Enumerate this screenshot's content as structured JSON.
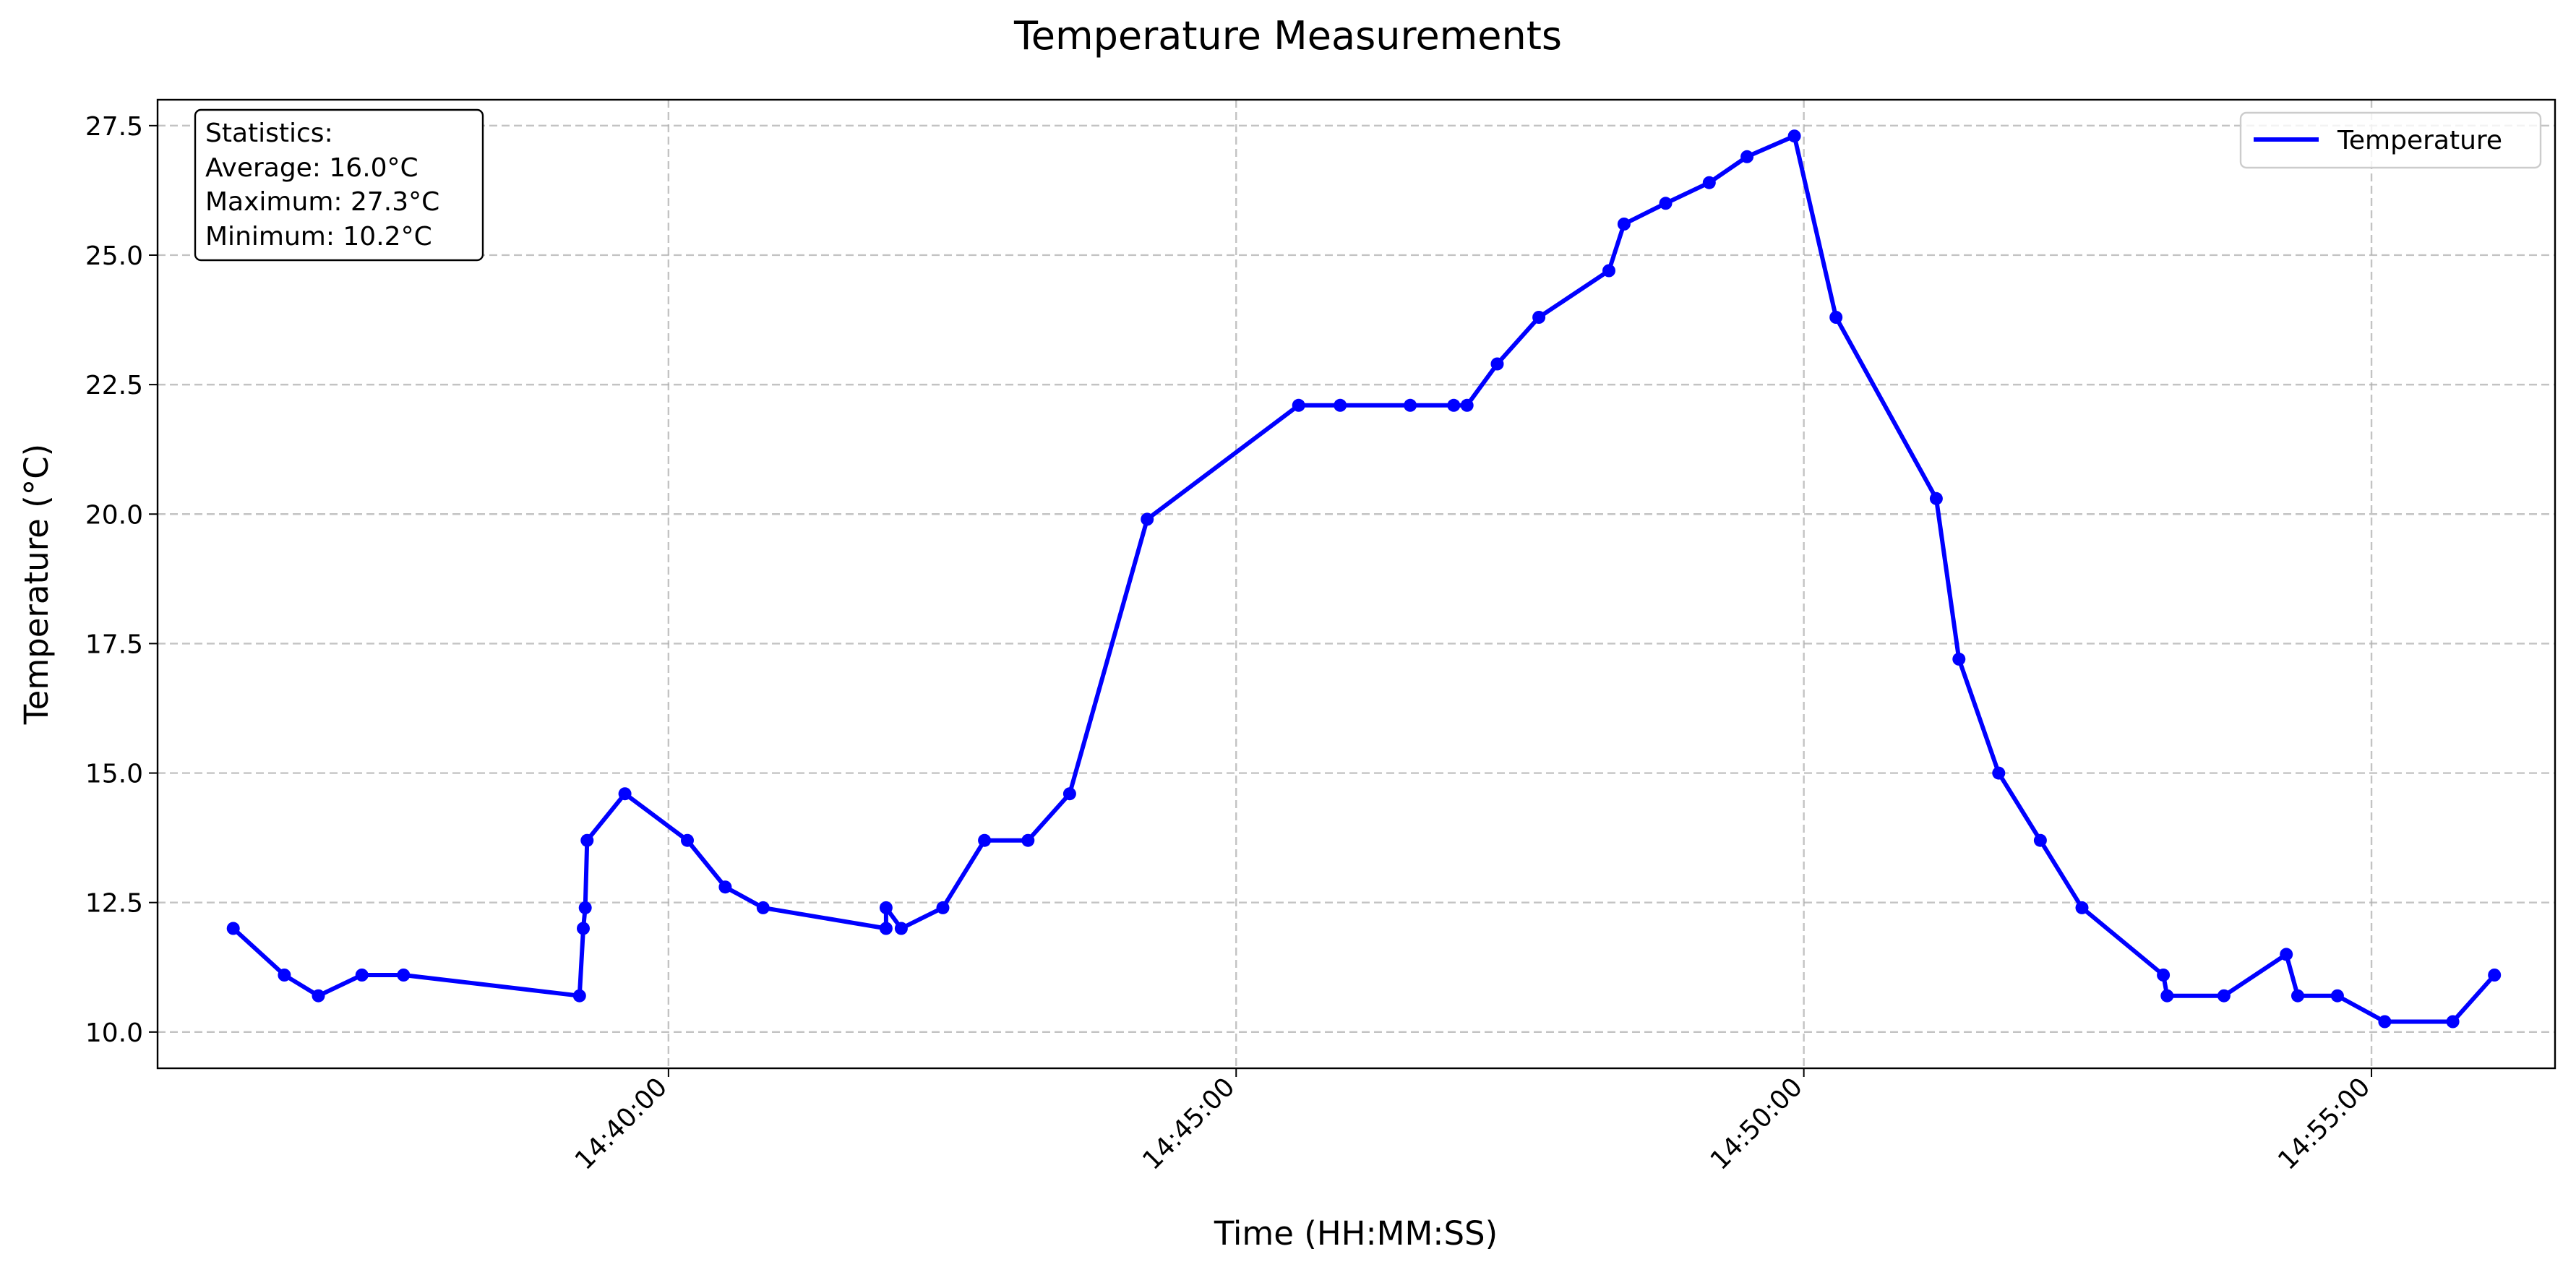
{
  "chart_data": {
    "type": "line",
    "title": "Temperature Measurements",
    "xlabel": "Time (HH:MM:SS)",
    "ylabel": "Temperature (°C)",
    "xlim": [
      "14:35:30",
      "14:56:37"
    ],
    "ylim": [
      9.3,
      28.0
    ],
    "grid": true,
    "legend_position": "top-right",
    "x_ticks": [
      "14:40:00",
      "14:45:00",
      "14:50:00",
      "14:55:00"
    ],
    "y_ticks": [
      "10.0",
      "12.5",
      "15.0",
      "17.5",
      "20.0",
      "22.5",
      "25.0",
      "27.5"
    ],
    "y_tick_values": [
      10.0,
      12.5,
      15.0,
      17.5,
      20.0,
      22.5,
      25.0,
      27.5
    ],
    "line_color": "#0000ff",
    "series": [
      {
        "name": "Temperature",
        "x": [
          "14:36:10",
          "14:36:37",
          "14:36:55",
          "14:37:18",
          "14:37:40",
          "14:39:13",
          "14:39:15",
          "14:39:16",
          "14:39:17",
          "14:39:37",
          "14:40:10",
          "14:40:30",
          "14:40:50",
          "14:41:55",
          "14:41:55",
          "14:42:03",
          "14:42:25",
          "14:42:47",
          "14:43:10",
          "14:43:32",
          "14:44:13",
          "14:45:33",
          "14:45:55",
          "14:46:32",
          "14:46:55",
          "14:47:02",
          "14:47:18",
          "14:47:40",
          "14:48:17",
          "14:48:25",
          "14:48:47",
          "14:49:10",
          "14:49:30",
          "14:49:55",
          "14:50:17",
          "14:51:10",
          "14:51:22",
          "14:51:43",
          "14:52:05",
          "14:52:27",
          "14:53:10",
          "14:53:12",
          "14:53:42",
          "14:54:15",
          "14:54:21",
          "14:54:42",
          "14:55:07",
          "14:55:43",
          "14:56:05"
        ],
        "values": [
          12.0,
          11.1,
          10.7,
          11.1,
          11.1,
          10.7,
          12.0,
          12.4,
          13.7,
          14.6,
          13.7,
          12.8,
          12.4,
          12.0,
          12.4,
          12.0,
          12.4,
          13.7,
          13.7,
          14.6,
          19.9,
          22.1,
          22.1,
          22.1,
          22.1,
          22.1,
          22.9,
          23.8,
          24.7,
          25.6,
          26.0,
          26.4,
          26.9,
          27.3,
          23.8,
          20.3,
          17.2,
          15.0,
          13.7,
          12.4,
          11.1,
          10.7,
          10.7,
          11.5,
          10.7,
          10.7,
          10.2,
          10.2,
          11.1
        ]
      }
    ]
  },
  "stats_box": {
    "heading": "Statistics:",
    "average": "Average: 16.0°C",
    "maximum": "Maximum: 27.3°C",
    "minimum": "Minimum: 10.2°C"
  },
  "legend": {
    "label": "Temperature"
  }
}
